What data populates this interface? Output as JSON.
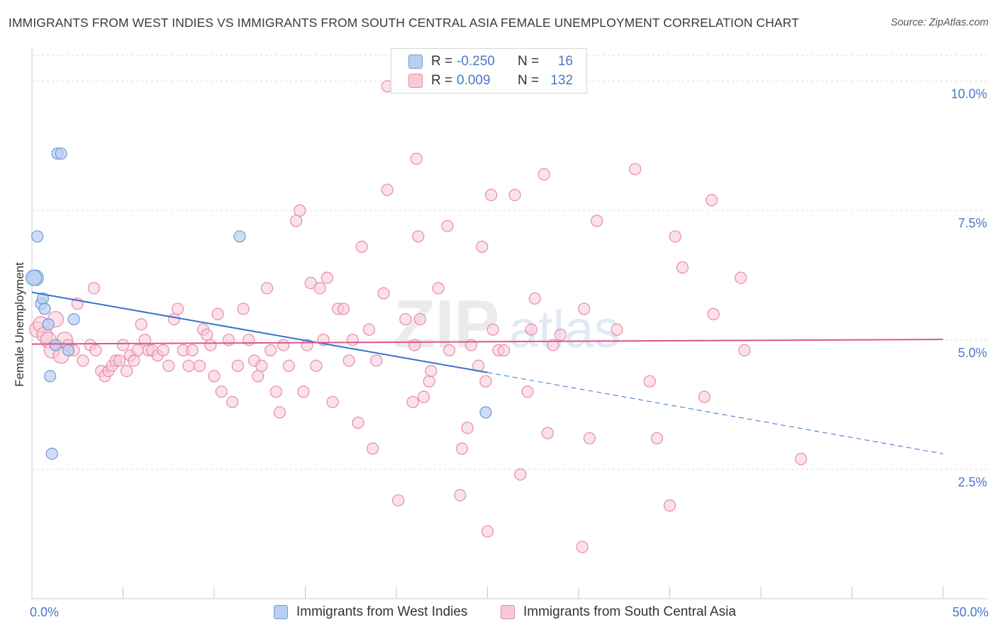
{
  "header": {
    "title": "IMMIGRANTS FROM WEST INDIES VS IMMIGRANTS FROM SOUTH CENTRAL ASIA FEMALE UNEMPLOYMENT CORRELATION CHART",
    "source": "Source: ZipAtlas.com"
  },
  "legend": {
    "blue": {
      "r_label": "R =",
      "r_value": "-0.250",
      "n_label": "N =",
      "n_value": "16"
    },
    "pink": {
      "r_label": "R =",
      "r_value": "0.009",
      "n_label": "N =",
      "n_value": "132"
    }
  },
  "watermark": {
    "zip": "ZIP",
    "atlas": "atlas"
  },
  "colors": {
    "blue_fill": "#b8cff0",
    "blue_stroke": "#6f9ad8",
    "blue_line": "#3574d0",
    "pink_fill": "#f8c8d6",
    "pink_stroke": "#e88aa7",
    "pink_line": "#e0558a",
    "grid": "#dcdcdc",
    "axis_text": "#4a78c5"
  },
  "chart_data": {
    "type": "scatter",
    "title": "IMMIGRANTS FROM WEST INDIES VS IMMIGRANTS FROM SOUTH CENTRAL ASIA FEMALE UNEMPLOYMENT CORRELATION CHART",
    "xlabel": "",
    "ylabel": "Female Unemployment",
    "xlim": [
      0,
      50
    ],
    "ylim": [
      0,
      10.5
    ],
    "x_tick_labels": [
      "0.0%",
      "50.0%"
    ],
    "y_ticks": [
      {
        "value": 2.5,
        "label": "2.5%"
      },
      {
        "value": 5.0,
        "label": "5.0%"
      },
      {
        "value": 7.5,
        "label": "7.5%"
      },
      {
        "value": 10.0,
        "label": "10.0%"
      }
    ],
    "series": [
      {
        "name": "Immigrants from West Indies",
        "color": "blue",
        "points": [
          [
            0.2,
            6.2
          ],
          [
            0.3,
            7.0
          ],
          [
            0.5,
            5.7
          ],
          [
            0.6,
            5.8
          ],
          [
            0.7,
            5.6
          ],
          [
            0.9,
            5.3
          ],
          [
            1.0,
            4.3
          ],
          [
            1.1,
            2.8
          ],
          [
            1.3,
            4.9
          ],
          [
            1.4,
            8.6
          ],
          [
            1.6,
            8.6
          ],
          [
            2.0,
            4.8
          ],
          [
            2.3,
            5.4
          ],
          [
            11.4,
            7.0
          ],
          [
            24.9,
            3.6
          ],
          [
            0.1,
            6.2
          ]
        ],
        "trend": {
          "x0": 0,
          "y0": 5.92,
          "x1": 25,
          "y1": 4.37,
          "dash_x1": 50,
          "dash_y1": 2.8
        }
      },
      {
        "name": "Immigrants from South Central Asia",
        "color": "pink",
        "points": [
          [
            0.3,
            5.2
          ],
          [
            0.5,
            5.3
          ],
          [
            0.7,
            5.1
          ],
          [
            0.9,
            5.0
          ],
          [
            1.1,
            4.8
          ],
          [
            1.3,
            5.4
          ],
          [
            1.6,
            4.7
          ],
          [
            1.8,
            5.0
          ],
          [
            2.0,
            4.9
          ],
          [
            2.3,
            4.8
          ],
          [
            2.5,
            5.7
          ],
          [
            2.8,
            4.6
          ],
          [
            3.2,
            4.9
          ],
          [
            3.5,
            4.8
          ],
          [
            3.4,
            6.0
          ],
          [
            3.8,
            4.4
          ],
          [
            4.0,
            4.3
          ],
          [
            4.2,
            4.4
          ],
          [
            4.4,
            4.5
          ],
          [
            4.6,
            4.6
          ],
          [
            4.8,
            4.6
          ],
          [
            5.0,
            4.9
          ],
          [
            5.2,
            4.4
          ],
          [
            5.4,
            4.7
          ],
          [
            5.6,
            4.6
          ],
          [
            5.8,
            4.8
          ],
          [
            6.0,
            5.3
          ],
          [
            6.2,
            5.0
          ],
          [
            6.4,
            4.8
          ],
          [
            6.6,
            4.8
          ],
          [
            6.9,
            4.7
          ],
          [
            7.2,
            4.8
          ],
          [
            7.5,
            4.5
          ],
          [
            7.8,
            5.4
          ],
          [
            8.0,
            5.6
          ],
          [
            8.3,
            4.8
          ],
          [
            8.6,
            4.5
          ],
          [
            8.8,
            4.8
          ],
          [
            9.2,
            4.5
          ],
          [
            9.4,
            5.2
          ],
          [
            9.6,
            5.1
          ],
          [
            9.8,
            4.9
          ],
          [
            10.0,
            4.3
          ],
          [
            10.2,
            5.5
          ],
          [
            10.4,
            4.0
          ],
          [
            10.8,
            5.0
          ],
          [
            11.0,
            3.8
          ],
          [
            11.3,
            4.5
          ],
          [
            11.6,
            5.6
          ],
          [
            11.9,
            5.0
          ],
          [
            12.2,
            4.6
          ],
          [
            12.4,
            4.3
          ],
          [
            12.6,
            4.5
          ],
          [
            12.9,
            6.0
          ],
          [
            13.1,
            4.8
          ],
          [
            13.4,
            4.0
          ],
          [
            13.6,
            3.6
          ],
          [
            13.8,
            4.9
          ],
          [
            14.1,
            4.5
          ],
          [
            14.5,
            7.3
          ],
          [
            14.7,
            7.5
          ],
          [
            14.9,
            4.0
          ],
          [
            15.1,
            4.9
          ],
          [
            15.3,
            6.1
          ],
          [
            15.6,
            4.5
          ],
          [
            15.8,
            6.0
          ],
          [
            16.0,
            5.0
          ],
          [
            16.2,
            6.2
          ],
          [
            16.5,
            3.8
          ],
          [
            16.8,
            5.6
          ],
          [
            17.1,
            5.6
          ],
          [
            17.4,
            4.6
          ],
          [
            17.6,
            5.0
          ],
          [
            17.9,
            3.4
          ],
          [
            18.1,
            6.8
          ],
          [
            18.5,
            5.2
          ],
          [
            18.7,
            2.9
          ],
          [
            18.9,
            4.6
          ],
          [
            19.3,
            5.9
          ],
          [
            19.5,
            7.9
          ],
          [
            20.1,
            1.9
          ],
          [
            20.5,
            5.4
          ],
          [
            20.9,
            3.8
          ],
          [
            21.0,
            4.9
          ],
          [
            21.3,
            5.4
          ],
          [
            21.5,
            3.9
          ],
          [
            21.8,
            4.2
          ],
          [
            21.9,
            4.4
          ],
          [
            22.3,
            6.0
          ],
          [
            22.8,
            7.2
          ],
          [
            22.9,
            4.8
          ],
          [
            23.5,
            2.0
          ],
          [
            23.6,
            2.9
          ],
          [
            23.9,
            3.3
          ],
          [
            24.1,
            4.9
          ],
          [
            24.5,
            4.5
          ],
          [
            24.7,
            6.8
          ],
          [
            24.9,
            4.2
          ],
          [
            25.0,
            1.3
          ],
          [
            25.3,
            5.2
          ],
          [
            25.6,
            4.8
          ],
          [
            25.9,
            4.8
          ],
          [
            26.5,
            7.8
          ],
          [
            26.8,
            2.4
          ],
          [
            27.2,
            4.0
          ],
          [
            27.4,
            5.2
          ],
          [
            28.1,
            8.2
          ],
          [
            28.3,
            3.2
          ],
          [
            28.6,
            4.9
          ],
          [
            29.0,
            5.1
          ],
          [
            30.2,
            1.0
          ],
          [
            30.3,
            5.6
          ],
          [
            30.6,
            3.1
          ],
          [
            31.0,
            7.3
          ],
          [
            32.1,
            5.2
          ],
          [
            33.1,
            8.3
          ],
          [
            33.9,
            4.2
          ],
          [
            34.3,
            3.1
          ],
          [
            35.0,
            1.8
          ],
          [
            35.3,
            7.0
          ],
          [
            35.7,
            6.4
          ],
          [
            36.9,
            3.9
          ],
          [
            37.3,
            7.7
          ],
          [
            37.4,
            5.5
          ],
          [
            38.9,
            6.2
          ],
          [
            39.1,
            4.8
          ],
          [
            19.5,
            9.9
          ],
          [
            21.1,
            8.5
          ],
          [
            42.2,
            2.7
          ],
          [
            21.2,
            7.0
          ],
          [
            25.2,
            7.8
          ],
          [
            27.6,
            5.8
          ]
        ],
        "trend": {
          "x0": 0,
          "y0": 4.92,
          "x1": 50,
          "y1": 5.01
        }
      }
    ],
    "legend_labels": [
      "Immigrants from West Indies",
      "Immigrants from South Central Asia"
    ]
  }
}
